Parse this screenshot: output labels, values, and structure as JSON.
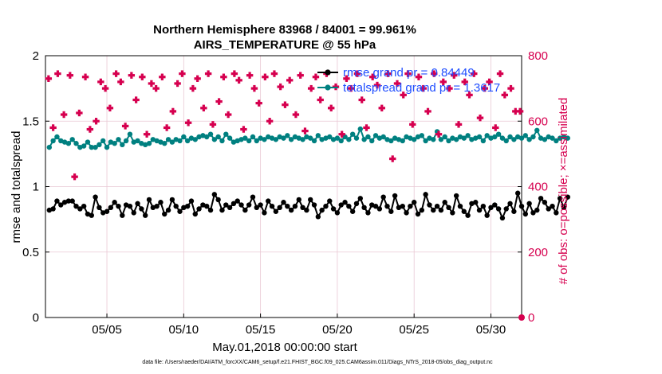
{
  "chart_data": {
    "type": "line",
    "title": "Northern Hemisphere 83968 / 84001 = 99.961%",
    "subtitle": "AIRS_TEMPERATURE @ 55 hPa",
    "xlabel": "May.01,2018 00:00:00 start",
    "ylabel": "rmse and totalspread",
    "ylabel_right": "# of obs: o=possible; ×=assimilated",
    "ylim": [
      0,
      2
    ],
    "ylim_right": [
      0,
      800
    ],
    "xlim": [
      1,
      32
    ],
    "y_ticks": [
      "0",
      "0.5",
      "1",
      "1.5",
      "2"
    ],
    "y_right_ticks": [
      "0",
      "200",
      "400",
      "600",
      "800"
    ],
    "x_ticks": [
      "05/05",
      "05/10",
      "05/15",
      "05/20",
      "05/25",
      "05/30"
    ],
    "x_tick_days": [
      5,
      10,
      15,
      20,
      25,
      30
    ],
    "grid": true,
    "legend_position": "top-right",
    "footnote": "data file: /Users/raeder/DAI/ATM_forcXX/CAM6_setup/f.e21.FHIST_BGC.f09_025.CAM6assim.011/Diags_NTrS_2018-05/obs_diag_output.nc",
    "series": [
      {
        "name": "rmse grand pr = 0.84449",
        "axis": "left",
        "color": "#000000",
        "start_day": 1.25,
        "step_days": 0.25,
        "values": [
          0.82,
          0.83,
          0.89,
          0.86,
          0.88,
          0.89,
          0.89,
          0.85,
          0.83,
          0.85,
          0.79,
          0.78,
          0.92,
          0.84,
          0.8,
          0.81,
          0.84,
          0.88,
          0.85,
          0.78,
          0.86,
          0.85,
          0.8,
          0.87,
          0.83,
          0.78,
          0.9,
          0.84,
          0.85,
          0.88,
          0.79,
          0.82,
          0.9,
          0.85,
          0.81,
          0.84,
          0.85,
          0.89,
          0.79,
          0.83,
          0.86,
          0.85,
          0.82,
          0.94,
          0.9,
          0.82,
          0.86,
          0.84,
          0.87,
          0.89,
          0.86,
          0.82,
          0.86,
          0.92,
          0.84,
          0.86,
          0.8,
          0.89,
          0.85,
          0.81,
          0.84,
          0.88,
          0.85,
          0.82,
          0.85,
          0.9,
          0.84,
          0.82,
          0.9,
          0.86,
          0.77,
          0.82,
          0.85,
          0.89,
          0.83,
          0.8,
          0.86,
          0.88,
          0.85,
          0.81,
          0.87,
          0.91,
          0.84,
          0.8,
          0.86,
          0.85,
          0.83,
          0.92,
          0.85,
          0.81,
          0.93,
          0.84,
          0.85,
          0.8,
          0.85,
          0.88,
          0.79,
          0.82,
          0.94,
          0.86,
          0.82,
          0.85,
          0.82,
          0.88,
          0.84,
          0.8,
          0.93,
          0.85,
          0.81,
          0.78,
          0.87,
          0.88,
          0.82,
          0.85,
          0.78,
          0.84,
          0.86,
          0.83,
          0.76,
          0.83,
          0.87,
          0.81,
          0.95,
          0.85,
          0.79,
          0.87,
          0.8,
          0.82,
          0.91,
          0.88,
          0.83,
          0.85,
          0.8,
          0.91,
          0.84,
          0.92
        ]
      },
      {
        "name": "totalspread grand pr = 1.3617",
        "axis": "left",
        "color": "#008080",
        "start_day": 1.25,
        "step_days": 0.25,
        "values": [
          1.3,
          1.35,
          1.38,
          1.35,
          1.34,
          1.33,
          1.36,
          1.33,
          1.3,
          1.31,
          1.34,
          1.3,
          1.3,
          1.32,
          1.35,
          1.3,
          1.34,
          1.33,
          1.36,
          1.32,
          1.35,
          1.4,
          1.34,
          1.35,
          1.33,
          1.32,
          1.33,
          1.36,
          1.35,
          1.34,
          1.33,
          1.36,
          1.34,
          1.36,
          1.35,
          1.38,
          1.35,
          1.37,
          1.36,
          1.38,
          1.39,
          1.38,
          1.4,
          1.36,
          1.38,
          1.35,
          1.4,
          1.37,
          1.34,
          1.35,
          1.36,
          1.37,
          1.35,
          1.38,
          1.35,
          1.37,
          1.36,
          1.38,
          1.37,
          1.36,
          1.38,
          1.37,
          1.39,
          1.36,
          1.38,
          1.37,
          1.36,
          1.38,
          1.37,
          1.35,
          1.39,
          1.36,
          1.37,
          1.38,
          1.36,
          1.37,
          1.35,
          1.38,
          1.36,
          1.4,
          1.37,
          1.44,
          1.36,
          1.38,
          1.35,
          1.39,
          1.37,
          1.38,
          1.36,
          1.35,
          1.37,
          1.36,
          1.35,
          1.38,
          1.37,
          1.36,
          1.38,
          1.39,
          1.35,
          1.37,
          1.36,
          1.42,
          1.36,
          1.38,
          1.35,
          1.37,
          1.36,
          1.38,
          1.37,
          1.39,
          1.36,
          1.37,
          1.38,
          1.35,
          1.39,
          1.37,
          1.38,
          1.4,
          1.37,
          1.35,
          1.38,
          1.36,
          1.38,
          1.37,
          1.39,
          1.36,
          1.38,
          1.43,
          1.37,
          1.36,
          1.38,
          1.37,
          1.35,
          1.37,
          1.38,
          1.37
        ]
      },
      {
        "name": "# of obs assimilated",
        "axis": "right",
        "color": "#d6004f",
        "marker": "cross",
        "points": [
          [
            1.2,
            730
          ],
          [
            1.5,
            580
          ],
          [
            1.8,
            745
          ],
          [
            2.2,
            620
          ],
          [
            2.6,
            740
          ],
          [
            2.9,
            430
          ],
          [
            3.2,
            625
          ],
          [
            3.6,
            735
          ],
          [
            3.9,
            575
          ],
          [
            4.3,
            600
          ],
          [
            4.6,
            720
          ],
          [
            4.9,
            700
          ],
          [
            5.2,
            640
          ],
          [
            5.6,
            745
          ],
          [
            5.9,
            720
          ],
          [
            6.2,
            585
          ],
          [
            6.6,
            740
          ],
          [
            6.9,
            665
          ],
          [
            7.3,
            735
          ],
          [
            7.6,
            560
          ],
          [
            7.9,
            715
          ],
          [
            8.2,
            700
          ],
          [
            8.6,
            735
          ],
          [
            8.9,
            580
          ],
          [
            9.3,
            630
          ],
          [
            9.6,
            715
          ],
          [
            9.9,
            745
          ],
          [
            10.3,
            595
          ],
          [
            10.6,
            700
          ],
          [
            10.9,
            730
          ],
          [
            11.3,
            640
          ],
          [
            11.6,
            745
          ],
          [
            11.9,
            590
          ],
          [
            12.3,
            660
          ],
          [
            12.6,
            735
          ],
          [
            12.9,
            620
          ],
          [
            13.3,
            745
          ],
          [
            13.6,
            725
          ],
          [
            13.9,
            575
          ],
          [
            14.3,
            740
          ],
          [
            14.6,
            700
          ],
          [
            14.9,
            655
          ],
          [
            15.3,
            735
          ],
          [
            15.6,
            600
          ],
          [
            15.9,
            745
          ],
          [
            16.3,
            705
          ],
          [
            16.6,
            650
          ],
          [
            16.9,
            725
          ],
          [
            17.3,
            620
          ],
          [
            17.6,
            740
          ],
          [
            17.9,
            570
          ],
          [
            18.3,
            700
          ],
          [
            18.6,
            735
          ],
          [
            18.9,
            665
          ],
          [
            19.3,
            745
          ],
          [
            19.6,
            640
          ],
          [
            19.9,
            705
          ],
          [
            20.3,
            560
          ],
          [
            20.6,
            730
          ],
          [
            20.9,
            700
          ],
          [
            21.3,
            745
          ],
          [
            21.6,
            665
          ],
          [
            21.9,
            580
          ],
          [
            22.3,
            735
          ],
          [
            22.6,
            710
          ],
          [
            22.9,
            640
          ],
          [
            23.3,
            745
          ],
          [
            23.6,
            485
          ],
          [
            23.9,
            715
          ],
          [
            24.3,
            680
          ],
          [
            24.6,
            745
          ],
          [
            24.9,
            590
          ],
          [
            25.3,
            735
          ],
          [
            25.6,
            700
          ],
          [
            25.9,
            630
          ],
          [
            26.3,
            745
          ],
          [
            26.6,
            560
          ],
          [
            26.9,
            720
          ],
          [
            27.3,
            700
          ],
          [
            27.6,
            740
          ],
          [
            27.9,
            590
          ],
          [
            28.3,
            720
          ],
          [
            28.6,
            680
          ],
          [
            28.9,
            745
          ],
          [
            29.3,
            610
          ],
          [
            29.6,
            700
          ],
          [
            29.9,
            720
          ],
          [
            30.3,
            580
          ],
          [
            30.6,
            745
          ],
          [
            30.9,
            680
          ],
          [
            31.3,
            700
          ],
          [
            31.6,
            630
          ],
          [
            31.9,
            630
          ]
        ]
      }
    ]
  }
}
